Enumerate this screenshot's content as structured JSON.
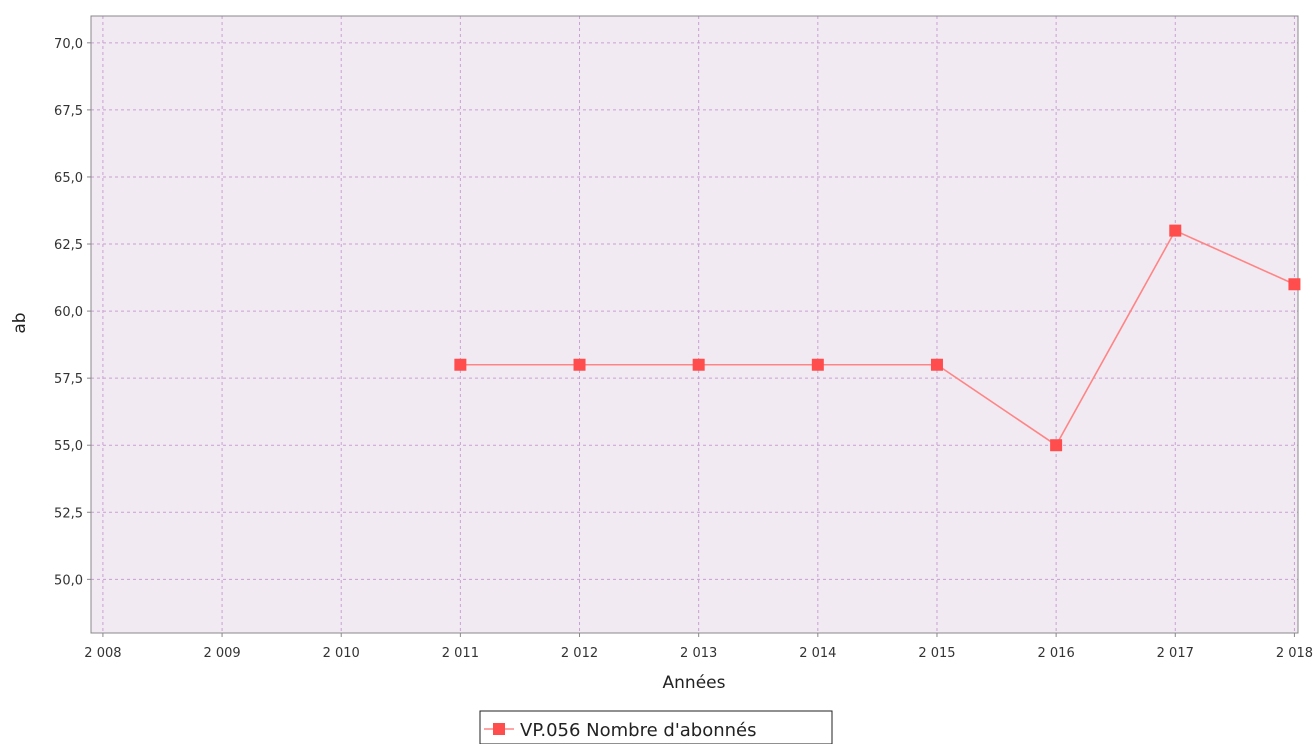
{
  "chart_data": {
    "type": "line",
    "xlabel": "Années",
    "ylabel": "ab",
    "x_tick_labels": [
      "2 008",
      "2 009",
      "2 010",
      "2 011",
      "2 012",
      "2 013",
      "2 014",
      "2 015",
      "2 016",
      "2 017",
      "2 018"
    ],
    "y_tick_labels": [
      "50,0",
      "52,5",
      "55,0",
      "57,5",
      "60,0",
      "62,5",
      "65,0",
      "67,5",
      "70,0"
    ],
    "xlim": [
      2007.9,
      2018.03
    ],
    "ylim": [
      48.0,
      71.0
    ],
    "grid": true,
    "legend_position": "bottom-center",
    "colors": {
      "plot_background": "#f2eaf3",
      "grid": "#c8a0d2",
      "series_line": "#ff8585",
      "series_marker": "#ff4d4d",
      "axis": "#888888"
    },
    "series": [
      {
        "name": "VP.056 Nombre d'abonnés",
        "x": [
          2011,
          2012,
          2013,
          2014,
          2015,
          2016,
          2017,
          2018
        ],
        "y": [
          58,
          58,
          58,
          58,
          58,
          55,
          63,
          61
        ]
      }
    ]
  }
}
